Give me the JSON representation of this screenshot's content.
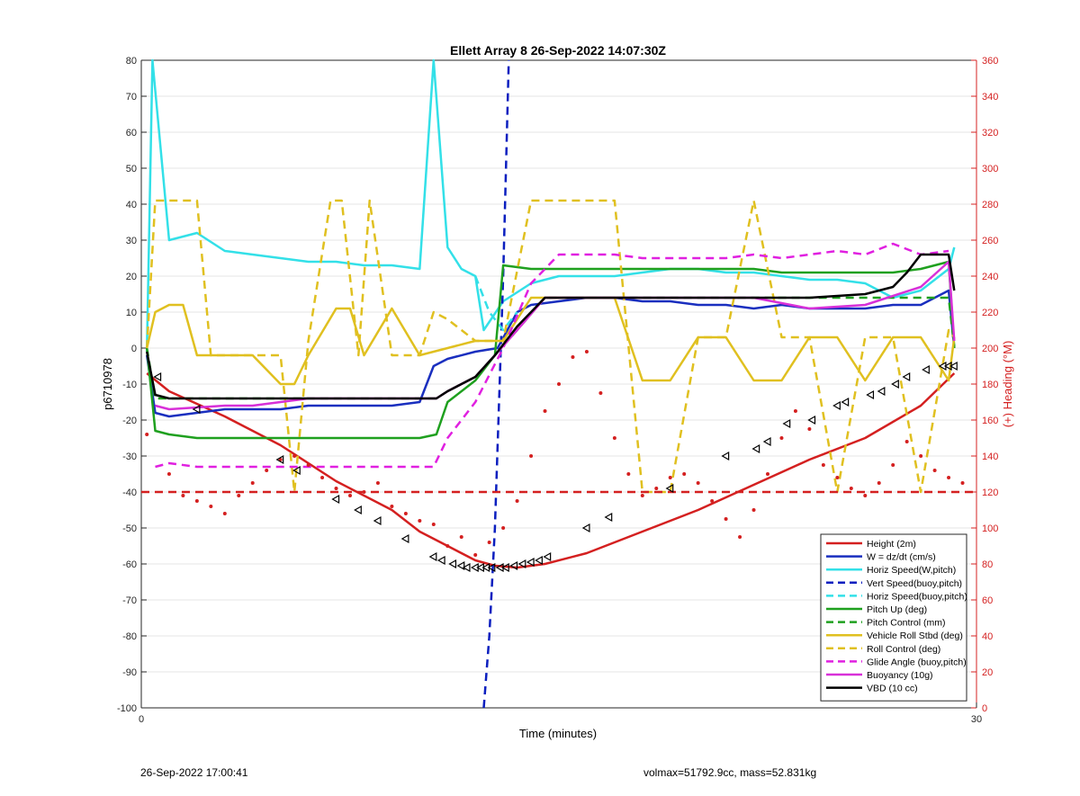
{
  "footer": {
    "timestamp": "26-Sep-2022 17:00:41",
    "summary": "volmax=51792.9cc, mass=52.831kg"
  },
  "chart_data": {
    "type": "line",
    "title": "Ellett Array 8 26-Sep-2022 14:07:30Z",
    "xlabel": "Time (minutes)",
    "ylabel": "p6710978",
    "y2label": "(+) Heading (°M)",
    "xlim": [
      0,
      30
    ],
    "ylim": [
      -100,
      80
    ],
    "y2lim": [
      0,
      360
    ],
    "xticks": [
      "0",
      "30"
    ],
    "yticks": [
      "80",
      "70",
      "60",
      "50",
      "40",
      "30",
      "20",
      "10",
      "0",
      "-10",
      "-20",
      "-30",
      "-40",
      "-50",
      "-60",
      "-70",
      "-80",
      "-90",
      "-100"
    ],
    "y2ticks": [
      "360",
      "340",
      "320",
      "300",
      "280",
      "260",
      "240",
      "220",
      "200",
      "180",
      "160",
      "140",
      "120",
      "100",
      "80",
      "60",
      "40",
      "20",
      "0"
    ],
    "grid": true,
    "legend_position": "bottom-right",
    "series": [
      {
        "name": "Height (2m)",
        "color": "#d42020",
        "style": "solid",
        "x": [
          0.2,
          1,
          3,
          5,
          7,
          9,
          10,
          11,
          12,
          12.7,
          13.5,
          14.5,
          16,
          18,
          20,
          22,
          24,
          26,
          28,
          29.2
        ],
        "y": [
          -7,
          -12,
          -19,
          -27,
          -37,
          -45,
          -51,
          -55,
          -59,
          -60.5,
          -61,
          -60,
          -57,
          -51,
          -45,
          -38,
          -31,
          -25,
          -16,
          -7
        ]
      },
      {
        "name": "W = dz/dt (cm/s)",
        "color": "#1a2fbf",
        "style": "solid",
        "x": [
          0.2,
          0.5,
          1,
          2,
          3,
          4,
          5,
          6,
          7,
          8,
          9,
          10,
          10.5,
          11,
          12,
          12.8,
          13.5,
          14,
          15,
          16,
          17,
          18,
          19,
          20,
          21,
          22,
          23,
          24,
          25,
          26,
          27,
          28,
          29,
          29.2
        ],
        "y": [
          -2,
          -18,
          -19,
          -18,
          -17,
          -17,
          -17,
          -16,
          -16,
          -16,
          -16,
          -15,
          -5,
          -3,
          -1,
          0,
          10,
          12,
          13,
          14,
          14,
          13,
          13,
          12,
          12,
          11,
          12,
          11,
          11,
          11,
          12,
          12,
          16,
          0
        ]
      },
      {
        "name": "Horiz Speed(W,pitch)",
        "color": "#33e0e8",
        "style": "solid",
        "x": [
          0.2,
          0.4,
          1,
          2,
          3,
          4,
          5,
          6,
          7,
          8,
          9,
          10,
          10.5,
          11,
          11.5,
          12,
          12.3,
          13,
          14,
          15,
          16,
          17,
          18,
          19,
          20,
          21,
          22,
          23,
          24,
          25,
          26,
          27,
          28,
          29,
          29.2
        ],
        "y": [
          -1,
          80,
          30,
          32,
          27,
          26,
          25,
          24,
          24,
          23,
          23,
          22,
          80,
          28,
          22,
          20,
          5,
          13,
          18,
          20,
          20,
          20,
          21,
          22,
          22,
          21,
          21,
          20,
          19,
          19,
          18,
          14,
          16,
          22,
          28
        ]
      },
      {
        "name": "Vert Speed(buoy,pitch)",
        "color": "#0b1fbf",
        "style": "dashed",
        "x": [
          12.3,
          12.5,
          12.7,
          13.0,
          13.2
        ],
        "y": [
          -100,
          -80,
          -50,
          20,
          80
        ]
      },
      {
        "name": "Horiz Speed(buoy,pitch)",
        "color": "#33e0e8",
        "style": "dashed",
        "x": [
          12.0,
          12.5,
          13.0,
          13.5
        ],
        "y": [
          20,
          10,
          5,
          10
        ]
      },
      {
        "name": "Pitch Up (deg)",
        "color": "#1fa01f",
        "style": "solid",
        "x": [
          0.2,
          0.5,
          1,
          2,
          3,
          4,
          5,
          6,
          7,
          8,
          9,
          10,
          10.6,
          11,
          12,
          12.7,
          13,
          14,
          15,
          16,
          17,
          18,
          19,
          20,
          21,
          22,
          23,
          24,
          25,
          26,
          27,
          28,
          29,
          29.2
        ],
        "y": [
          0,
          -23,
          -24,
          -25,
          -25,
          -25,
          -25,
          -25,
          -25,
          -25,
          -25,
          -25,
          -24,
          -15,
          -9,
          -2,
          23,
          22,
          22,
          22,
          22,
          22,
          22,
          22,
          22,
          22,
          21,
          21,
          21,
          21,
          21,
          22,
          24,
          0
        ]
      },
      {
        "name": "Pitch Control (mm)",
        "color": "#1fa01f",
        "style": "dashed",
        "x": [
          0.2,
          0.5,
          2,
          5,
          8,
          10,
          10.6,
          11,
          12,
          12.7,
          13.5,
          14.5,
          18,
          22,
          26,
          28,
          29,
          29.2
        ],
        "y": [
          0,
          -14,
          -14,
          -14,
          -14,
          -14,
          -14,
          -12,
          -8,
          -2,
          5,
          14,
          14,
          14,
          14,
          14,
          14,
          0
        ]
      },
      {
        "name": "Vehicle Roll Stbd (deg)",
        "color": "#e0c020",
        "style": "solid",
        "x": [
          0.2,
          0.5,
          1,
          1.5,
          2,
          2.5,
          3,
          4,
          5,
          5.5,
          6,
          7,
          7.5,
          8,
          9,
          10,
          11,
          12,
          13,
          14,
          15,
          16,
          17,
          18,
          19,
          20,
          21,
          22,
          23,
          24,
          25,
          26,
          27,
          28,
          29,
          29.2
        ],
        "y": [
          0,
          10,
          12,
          12,
          -2,
          -2,
          -2,
          -2,
          -10,
          -10,
          -2,
          11,
          11,
          -2,
          11,
          -2,
          0,
          2,
          2,
          14,
          14,
          14,
          14,
          -9,
          -9,
          3,
          3,
          -9,
          -9,
          3,
          3,
          -9,
          3,
          3,
          -9,
          3
        ]
      },
      {
        "name": "Roll Control (deg)",
        "color": "#e0c020",
        "style": "dashed",
        "x": [
          0.2,
          0.5,
          1,
          2,
          2.5,
          3,
          4,
          5,
          5.5,
          6,
          6.8,
          7.2,
          7.8,
          8.2,
          9,
          10,
          10.5,
          11,
          12,
          13,
          14,
          15,
          16,
          17,
          18,
          19,
          20,
          21,
          22,
          23,
          24,
          25,
          26,
          27,
          28,
          29,
          29.2
        ],
        "y": [
          0,
          41,
          41,
          41,
          -2,
          -2,
          -2,
          -2,
          -40,
          2,
          41,
          41,
          -2,
          41,
          -2,
          -2,
          10,
          8,
          2,
          2,
          41,
          41,
          41,
          41,
          -40,
          -40,
          3,
          3,
          41,
          3,
          3,
          -40,
          3,
          3,
          -40,
          5,
          3
        ]
      },
      {
        "name": "Glide Angle (buoy,pitch)",
        "color": "#e020e0",
        "style": "dashed",
        "x": [
          0.5,
          1,
          2,
          4,
          6,
          8,
          10,
          10.5,
          11,
          12,
          13,
          14,
          15,
          16,
          17,
          18,
          19,
          20,
          21,
          22,
          23,
          24,
          25,
          26,
          27,
          28,
          29
        ],
        "y": [
          -33,
          -32,
          -33,
          -33,
          -33,
          -33,
          -33,
          -33,
          -25,
          -15,
          0,
          18,
          26,
          26,
          26,
          25,
          25,
          25,
          25,
          26,
          25,
          26,
          27,
          26,
          29,
          26,
          27
        ]
      },
      {
        "name": "Buoyancy (10g)",
        "color": "#d830d8",
        "style": "solid",
        "x": [
          0.5,
          1,
          3,
          4,
          5,
          6,
          7,
          8,
          9,
          10,
          10.6,
          11,
          12,
          12.7,
          13.5,
          14.5,
          16,
          18,
          20,
          22,
          24,
          26,
          28,
          29,
          29.2
        ],
        "y": [
          -16,
          -17,
          -16,
          -16,
          -15,
          -14,
          -14,
          -14,
          -14,
          -14,
          -14,
          -12,
          -8,
          -2,
          5,
          14,
          14,
          14,
          14,
          14,
          11,
          12,
          17,
          24,
          2
        ]
      },
      {
        "name": "VBD (10 cc)",
        "color": "#000000",
        "style": "solid",
        "x": [
          0.2,
          0.5,
          1,
          3,
          5,
          7,
          9,
          10.6,
          11,
          12,
          12.7,
          13.5,
          14.5,
          16,
          18,
          20,
          22,
          24,
          26,
          27,
          27.5,
          28,
          29,
          29.2
        ],
        "y": [
          -1,
          -13,
          -14,
          -14,
          -14,
          -14,
          -14,
          -14,
          -12,
          -8,
          -2,
          6,
          14,
          14,
          14,
          14,
          14,
          14,
          15,
          17,
          21,
          26,
          26,
          16
        ]
      },
      {
        "name": "",
        "color": "#d42020",
        "style": "dashed",
        "x": [
          0,
          30
        ],
        "y": [
          -40,
          -40
        ]
      }
    ],
    "heading_points": {
      "color": "#d42020",
      "axis": "right",
      "x": [
        0.2,
        1,
        1.5,
        2,
        2.5,
        3,
        3.5,
        4,
        4.5,
        5,
        5.5,
        6,
        6.5,
        7,
        7.5,
        8,
        8.5,
        9,
        9.5,
        10,
        10.5,
        11,
        11.5,
        12,
        12.5,
        13,
        13.5,
        14,
        14.5,
        15,
        15.5,
        16,
        16.5,
        17,
        17.5,
        18,
        18.5,
        19,
        19.5,
        20,
        20.5,
        21,
        21.5,
        22,
        22.5,
        23,
        23.5,
        24,
        24.5,
        25,
        25.5,
        26,
        26.5,
        27,
        27.5,
        28,
        28.5,
        29,
        29.5
      ],
      "y": [
        152,
        130,
        118,
        115,
        112,
        108,
        118,
        125,
        132,
        138,
        140,
        135,
        128,
        122,
        118,
        120,
        125,
        112,
        108,
        104,
        102,
        90,
        95,
        85,
        92,
        100,
        115,
        140,
        165,
        180,
        195,
        198,
        175,
        150,
        130,
        118,
        122,
        128,
        130,
        125,
        115,
        105,
        95,
        110,
        130,
        150,
        165,
        155,
        135,
        128,
        122,
        118,
        125,
        135,
        148,
        140,
        132,
        128,
        125
      ]
    },
    "height_markers": {
      "x": [
        0.6,
        2,
        5,
        5.6,
        7,
        7.8,
        8.5,
        9.5,
        10.5,
        10.8,
        11.2,
        11.5,
        11.7,
        12,
        12.2,
        12.4,
        12.6,
        12.9,
        13.1,
        13.4,
        13.7,
        14,
        14.3,
        14.6,
        16,
        16.8,
        19,
        21,
        22.1,
        22.5,
        23.2,
        24.1,
        25,
        25.3,
        26.2,
        26.6,
        27.1,
        27.5,
        28.2,
        28.8,
        29.0,
        29.2
      ],
      "y": [
        -8,
        -17,
        -31,
        -34,
        -42,
        -45,
        -48,
        -53,
        -58,
        -59,
        -60,
        -60.5,
        -61,
        -61,
        -61,
        -61,
        -61,
        -61,
        -61,
        -60.5,
        -60,
        -59.5,
        -59,
        -58,
        -50,
        -47,
        -39,
        -30,
        -28,
        -26,
        -21,
        -20,
        -16,
        -15,
        -13,
        -12,
        -10,
        -8,
        -6,
        -5,
        -5,
        -5
      ]
    }
  }
}
